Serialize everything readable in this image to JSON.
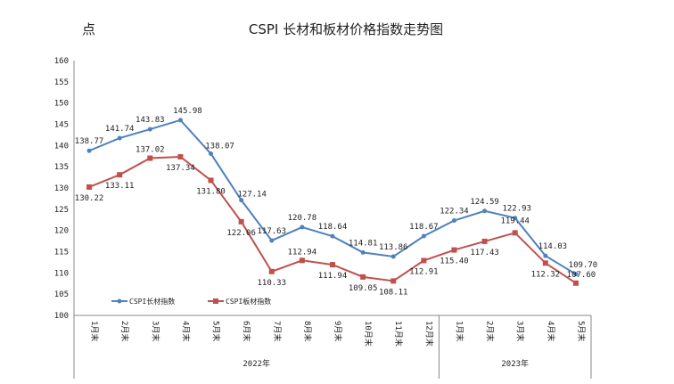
{
  "chart_data": {
    "type": "line",
    "title": "CSPI 长材和板材价格指数走势图",
    "ylabel": "点",
    "ylim": [
      100,
      160
    ],
    "yticks": [
      100,
      105,
      110,
      115,
      120,
      125,
      130,
      135,
      140,
      145,
      150,
      155,
      160
    ],
    "grid": false,
    "legend_position": "bottom-left",
    "categories": [
      "1月末",
      "2月末",
      "3月末",
      "4月末",
      "5月末",
      "6月末",
      "7月末",
      "8月末",
      "9月末",
      "10月末",
      "11月末",
      "12月末",
      "1月末",
      "2月末",
      "3月末",
      "4月末",
      "5月末"
    ],
    "groups": [
      {
        "label": "2022年",
        "count": 12
      },
      {
        "label": "2023年",
        "count": 5
      }
    ],
    "series": [
      {
        "name": "CSPI长材指数",
        "color": "#4F81BD",
        "values": [
          138.77,
          141.74,
          143.83,
          145.98,
          138.07,
          127.14,
          117.63,
          120.78,
          118.64,
          114.81,
          113.86,
          118.67,
          122.34,
          124.59,
          122.93,
          114.03,
          109.7
        ]
      },
      {
        "name": "CSPI板材指数",
        "color": "#C0504D",
        "values": [
          130.22,
          133.11,
          137.02,
          137.34,
          131.8,
          122.06,
          110.33,
          112.94,
          111.94,
          109.05,
          108.11,
          112.91,
          115.4,
          117.43,
          119.44,
          112.32,
          107.6
        ]
      }
    ]
  }
}
